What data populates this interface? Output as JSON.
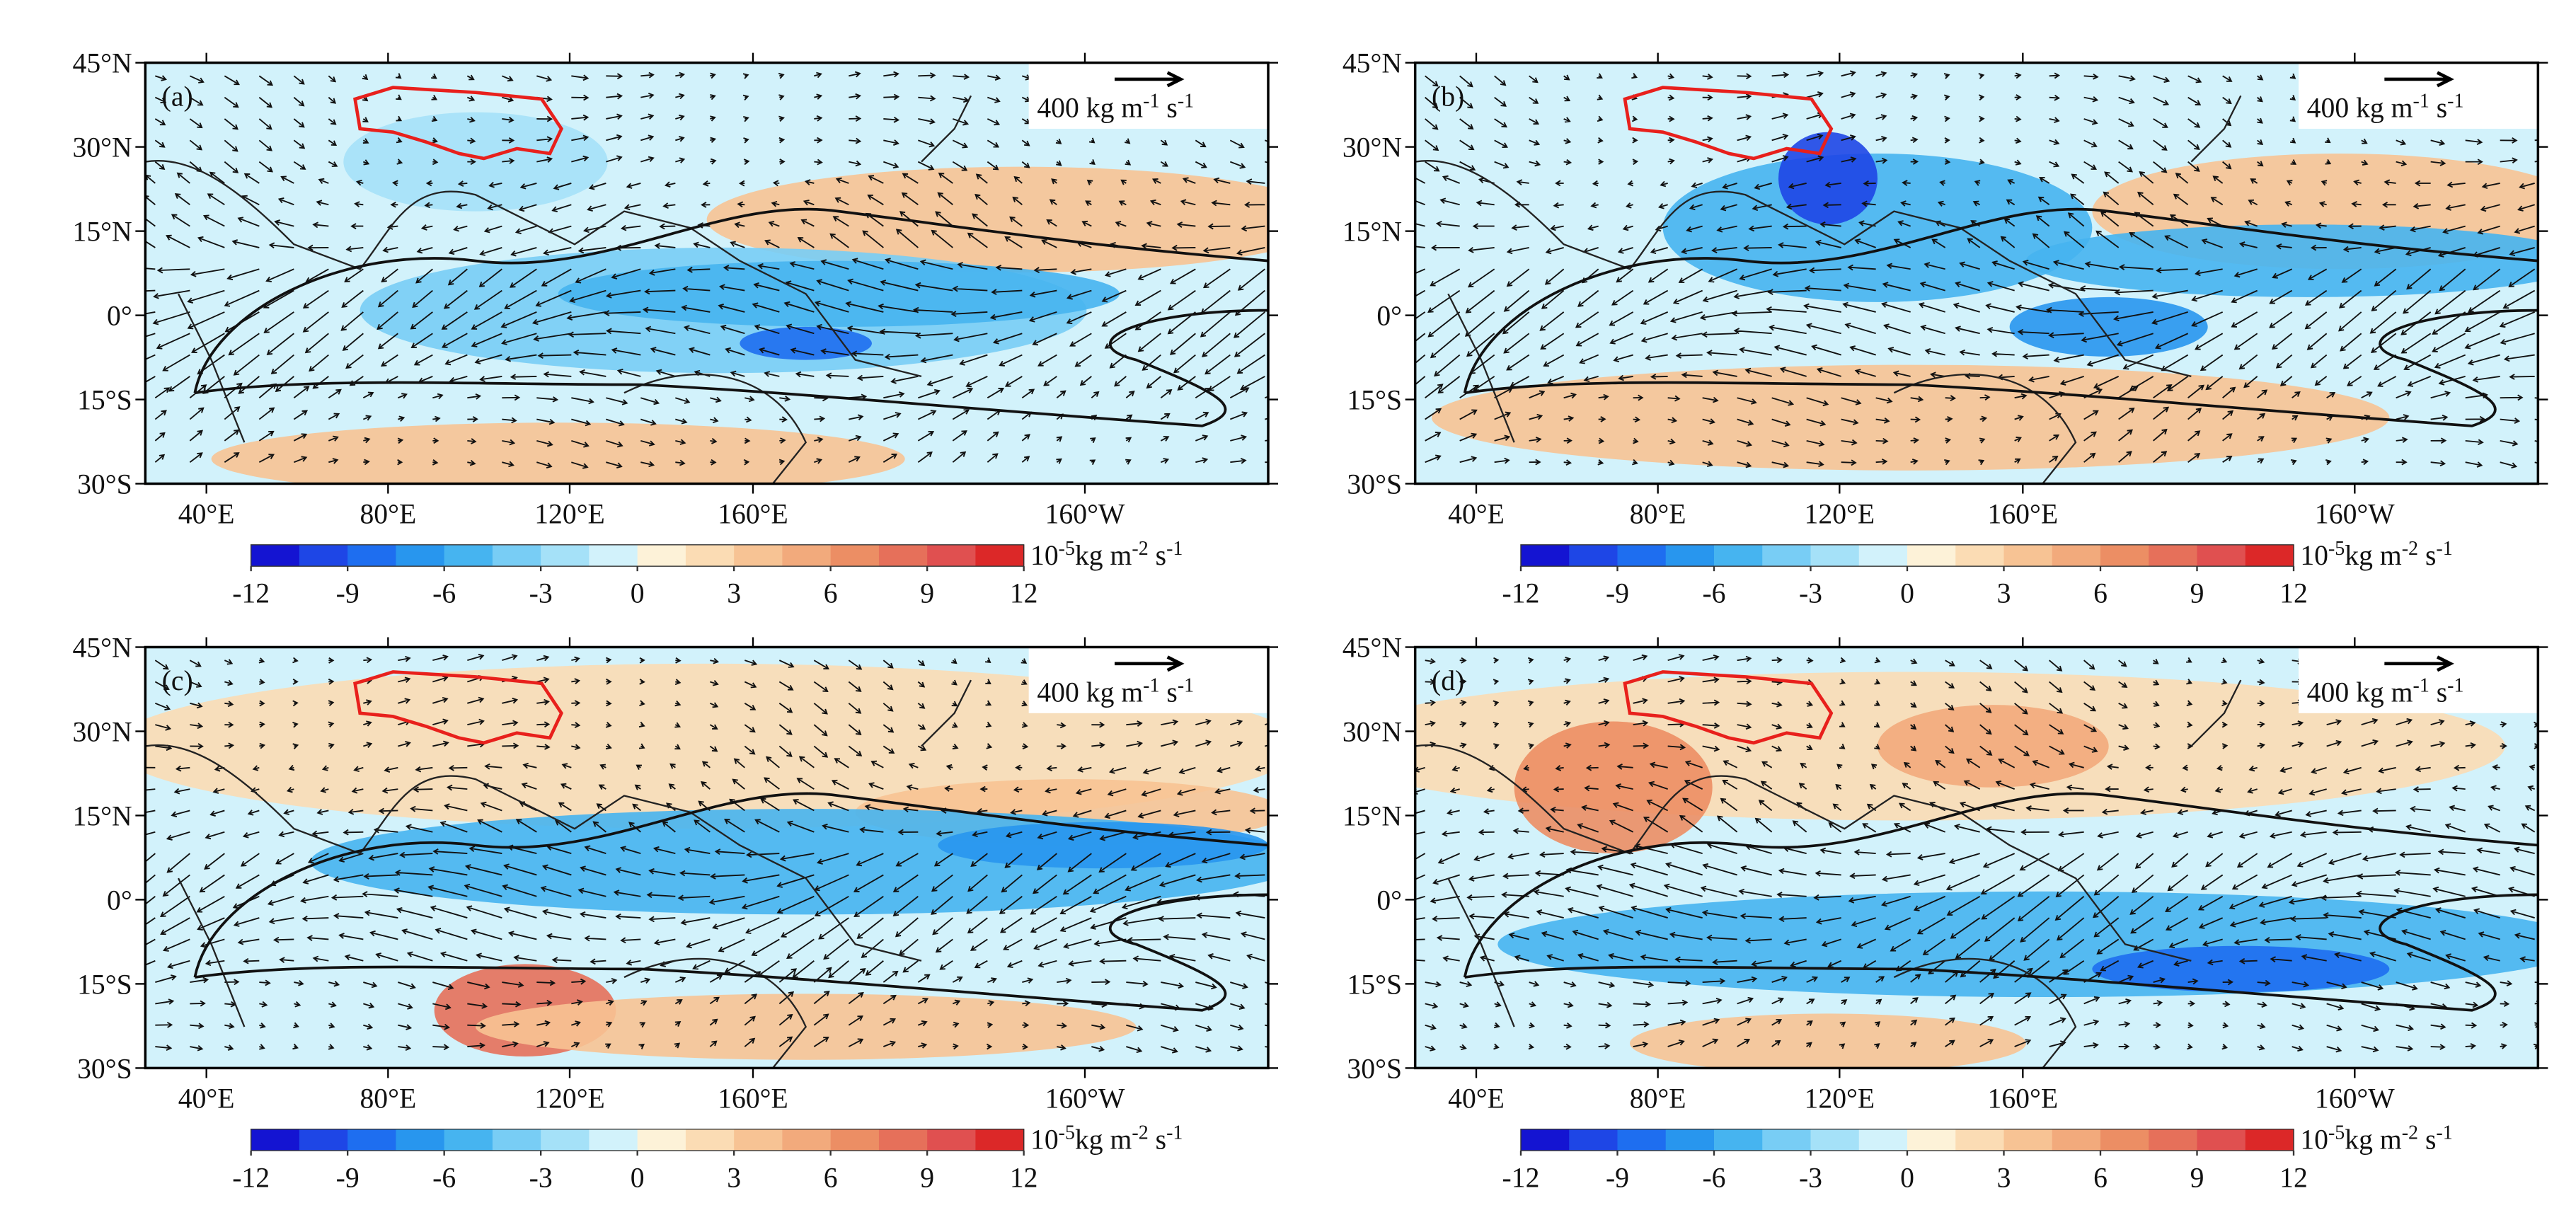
{
  "panels": [
    {
      "label": "(a)"
    },
    {
      "label": "(b)"
    },
    {
      "label": "(c)"
    },
    {
      "label": "(d)"
    }
  ],
  "lat_ticks": [
    "45°N",
    "30°N",
    "15°N",
    "0°",
    "15°S",
    "30°S"
  ],
  "lon_ticks": [
    "40°E",
    "80°E",
    "120°E",
    "160°E",
    "160°W"
  ],
  "reference_vector": {
    "base": "400 kg m",
    "exp1": "-1",
    "mid": " s",
    "exp2": "-1"
  },
  "colorbar": {
    "ticks": [
      -12,
      -9,
      -6,
      -3,
      0,
      3,
      6,
      9,
      12
    ],
    "range": [
      -12,
      12
    ],
    "colors": [
      "#1414d2",
      "#1e46e6",
      "#1e6ef0",
      "#2896ee",
      "#46b4f0",
      "#78cdf5",
      "#a5e1f8",
      "#d2f2fb",
      "#fdf2d8",
      "#fbdcb4",
      "#f7c394",
      "#f2aa7c",
      "#ec8e64",
      "#e6705a",
      "#e05050",
      "#dc2828"
    ],
    "unit": {
      "base": "10",
      "exp1": "-5",
      "mid": "kg m",
      "exp2": "-2",
      "end": " s",
      "exp3": "-1"
    }
  }
}
